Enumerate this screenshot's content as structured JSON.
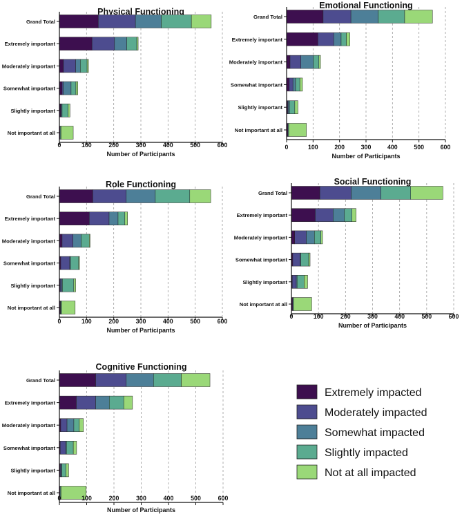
{
  "chart_data": [
    {
      "type": "bar",
      "stacked": true,
      "orientation": "horizontal",
      "title": "Physical Functioning",
      "xlabel": "Number of Participants",
      "ylabel": "",
      "xlim": [
        0,
        600
      ],
      "xticks": [
        0,
        100,
        200,
        300,
        400,
        500,
        600
      ],
      "grid": "vertical dashed",
      "categories": [
        "Grand Total",
        "Extremely important",
        "Moderately important",
        "Somewhat important",
        "Slightly important",
        "Not important at all"
      ],
      "series": [
        {
          "name": "Extremely impacted",
          "values": [
            143,
            120,
            15,
            10,
            5,
            3
          ]
        },
        {
          "name": "Moderately impacted",
          "values": [
            137,
            83,
            45,
            4,
            2,
            0
          ]
        },
        {
          "name": "Somewhat impacted",
          "values": [
            95,
            45,
            17,
            29,
            3,
            0
          ]
        },
        {
          "name": "Slightly impacted",
          "values": [
            111,
            37,
            25,
            18,
            22,
            3
          ]
        },
        {
          "name": "Not at all impacted",
          "values": [
            73,
            5,
            5,
            7,
            7,
            45
          ]
        }
      ]
    },
    {
      "type": "bar",
      "stacked": true,
      "orientation": "horizontal",
      "title": "Emotional Functioning",
      "xlabel": "Number of Participants",
      "ylabel": "",
      "xlim": [
        0,
        600
      ],
      "xticks": [
        0,
        100,
        200,
        300,
        400,
        500,
        600
      ],
      "grid": "vertical dashed",
      "categories": [
        "Grand Total",
        "Extremely important",
        "Moderately important",
        "Somewhat important",
        "Slightly important",
        "Not important at all"
      ],
      "series": [
        {
          "name": "Extremely impacted",
          "values": [
            138,
            118,
            13,
            10,
            4,
            5
          ]
        },
        {
          "name": "Moderately impacted",
          "values": [
            105,
            60,
            41,
            14,
            2,
            0
          ]
        },
        {
          "name": "Somewhat impacted",
          "values": [
            103,
            28,
            47,
            10,
            5,
            0
          ]
        },
        {
          "name": "Slightly impacted",
          "values": [
            100,
            20,
            21,
            16,
            20,
            3
          ]
        },
        {
          "name": "Not at all impacted",
          "values": [
            105,
            13,
            6,
            10,
            12,
            67
          ]
        }
      ]
    },
    {
      "type": "bar",
      "stacked": true,
      "orientation": "horizontal",
      "title": "Role Functioning",
      "xlabel": "Number of Participants",
      "ylabel": "",
      "xlim": [
        0,
        600
      ],
      "xticks": [
        0,
        100,
        200,
        300,
        400,
        500,
        600
      ],
      "grid": "vertical dashed",
      "categories": [
        "Grand Total",
        "Extremely important",
        "Moderately important",
        "Somewhat important",
        "Slightly important",
        "Not important at all"
      ],
      "series": [
        {
          "name": "Extremely impacted",
          "values": [
            123,
            110,
            10,
            5,
            3,
            3
          ]
        },
        {
          "name": "Moderately impacted",
          "values": [
            123,
            73,
            40,
            33,
            5,
            2
          ]
        },
        {
          "name": "Somewhat impacted",
          "values": [
            107,
            33,
            30,
            3,
            3,
            0
          ]
        },
        {
          "name": "Slightly impacted",
          "values": [
            127,
            25,
            30,
            30,
            42,
            3
          ]
        },
        {
          "name": "Not at all impacted",
          "values": [
            77,
            10,
            3,
            3,
            7,
            50
          ]
        }
      ]
    },
    {
      "type": "bar",
      "stacked": true,
      "orientation": "horizontal",
      "title": "Social Functioning",
      "xlabel": "Number of Participants",
      "ylabel": "",
      "xlim": [
        0,
        600
      ],
      "xticks": [
        0,
        100,
        200,
        300,
        400,
        500,
        600
      ],
      "grid": "vertical dashed",
      "categories": [
        "Grand Total",
        "Extremely important",
        "Moderately important",
        "Somewhat important",
        "Slightly important",
        "Not important at all"
      ],
      "series": [
        {
          "name": "Extremely impacted",
          "values": [
            105,
            88,
            12,
            5,
            3,
            5
          ]
        },
        {
          "name": "Moderately impacted",
          "values": [
            116,
            66,
            43,
            27,
            15,
            0
          ]
        },
        {
          "name": "Somewhat impacted",
          "values": [
            110,
            42,
            30,
            3,
            3,
            0
          ]
        },
        {
          "name": "Slightly impacted",
          "values": [
            110,
            28,
            24,
            29,
            26,
            3
          ]
        },
        {
          "name": "Not at all impacted",
          "values": [
            119,
            15,
            6,
            5,
            13,
            67
          ]
        }
      ]
    },
    {
      "type": "bar",
      "stacked": true,
      "orientation": "horizontal",
      "title": "Cognitive Functioning",
      "xlabel": "Number of Participants",
      "ylabel": "",
      "xlim": [
        0,
        600
      ],
      "xticks": [
        0,
        100,
        200,
        300,
        400,
        500,
        600
      ],
      "grid": "vertical dashed",
      "categories": [
        "Grand Total",
        "Extremely important",
        "Moderately important",
        "Somewhat important",
        "Slightly important",
        "Not important at all"
      ],
      "series": [
        {
          "name": "Extremely impacted",
          "values": [
            133,
            62,
            5,
            3,
            3,
            3
          ]
        },
        {
          "name": "Moderately impacted",
          "values": [
            112,
            71,
            23,
            20,
            3,
            0
          ]
        },
        {
          "name": "Somewhat impacted",
          "values": [
            100,
            50,
            25,
            3,
            3,
            0
          ]
        },
        {
          "name": "Slightly impacted",
          "values": [
            102,
            53,
            20,
            25,
            15,
            3
          ]
        },
        {
          "name": "Not at all impacted",
          "values": [
            105,
            32,
            15,
            12,
            10,
            92
          ]
        }
      ]
    }
  ],
  "legend": {
    "items": [
      {
        "label": "Extremely impacted",
        "color": "#3d0f4f"
      },
      {
        "label": "Moderately impacted",
        "color": "#4d4c8f"
      },
      {
        "label": "Somewhat impacted",
        "color": "#4d7f98"
      },
      {
        "label": "Slightly impacted",
        "color": "#5bab90"
      },
      {
        "label": "Not at all impacted",
        "color": "#9ad878"
      }
    ]
  }
}
